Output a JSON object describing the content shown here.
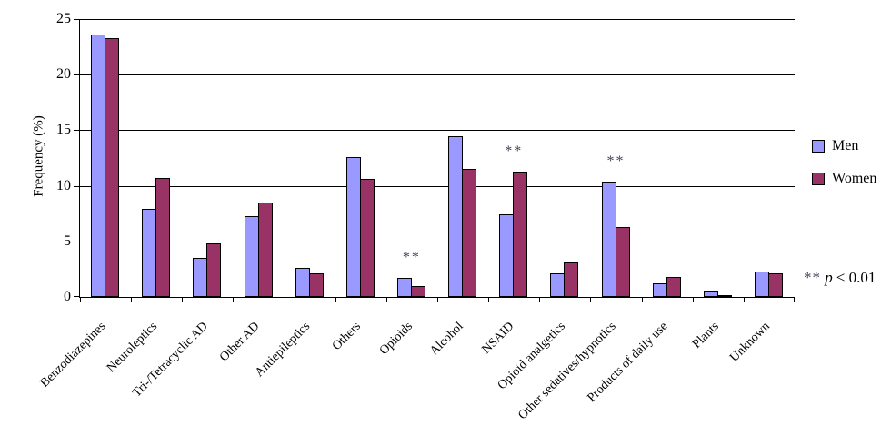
{
  "chart_data": {
    "type": "bar",
    "title": "",
    "ylabel": "Frequency (%)",
    "xlabel": "",
    "ylim": [
      0,
      25
    ],
    "yticks": [
      0,
      5,
      10,
      15,
      20,
      25
    ],
    "grid": true,
    "legend_position": "right",
    "categories": [
      "Benzodiazepines",
      "Neuroleptics",
      "Tri-/Tetracyclic AD",
      "Other AD",
      "Antiepileptics",
      "Others",
      "Opioids",
      "Alcohol",
      "NSAID",
      "Opioid analgetics",
      "Other sedatives/hypnotics",
      "Products of daily use",
      "Plants",
      "Unknown"
    ],
    "series": [
      {
        "name": "Men",
        "color": "#9999FF",
        "values": [
          23.6,
          7.9,
          3.5,
          7.3,
          2.6,
          12.6,
          1.7,
          14.5,
          7.4,
          2.1,
          10.4,
          1.2,
          0.6,
          2.3
        ]
      },
      {
        "name": "Women",
        "color": "#993366",
        "values": [
          23.3,
          10.7,
          4.8,
          8.5,
          2.1,
          10.6,
          1.0,
          11.5,
          11.3,
          3.1,
          6.3,
          1.8,
          0.2,
          2.1
        ]
      }
    ],
    "significance": {
      "marker": "**",
      "categories": [
        "Opioids",
        "NSAID",
        "Other sedatives/hypnotics"
      ],
      "note": "** p ≤ 0.01",
      "note_marker": "**",
      "note_p": "p",
      "note_rest": "≤ 0.01"
    }
  }
}
